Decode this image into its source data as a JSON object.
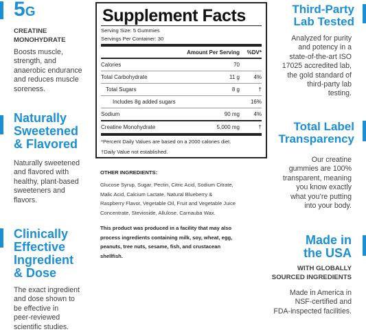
{
  "left": {
    "s1": {
      "big": "5",
      "big_suffix": "G",
      "caps": [
        "CREATINE",
        "MONOHYDRATE"
      ],
      "text": [
        "Boosts muscle,",
        "strength, and",
        "anaerobic endurance",
        "and reduces muscle",
        "soreness."
      ]
    },
    "s2": {
      "heading": [
        "Naturally",
        "Sweetened",
        "& Flavored"
      ],
      "text": [
        "Naturally sweetened",
        "and flavored with",
        "healthy, plant-based",
        "sweeteners and",
        "flavors."
      ]
    },
    "s3": {
      "heading": [
        "Clinically",
        "Effective",
        "Ingredient",
        "& Dose"
      ],
      "text": [
        "The exact ingredient",
        "and dose shown to",
        "be effective in",
        "peer-reviewed",
        "scientific studies."
      ]
    }
  },
  "facts": {
    "title": "Supplement Facts",
    "serving_size": "Serving Size: 5 Gummies",
    "servings_per_container": "Servings Per Container: 30",
    "header": {
      "amount": "Amount Per Serving",
      "dv": "%DV*"
    },
    "rows": [
      {
        "name": "Calories",
        "amount": "70",
        "dv": ""
      },
      {
        "name": "Total Carbohydrate",
        "amount": "11 g",
        "dv": "4%"
      },
      {
        "name": "Total Sugars",
        "amount": "8 g",
        "dv": "†"
      },
      {
        "name": "Includes 8g added sugars",
        "amount": "",
        "dv": "16%"
      },
      {
        "name": "Sodium",
        "amount": "90 mg",
        "dv": "4%"
      },
      {
        "name": "Creatine Monohydrate",
        "amount": "5,000 mg",
        "dv": "†"
      }
    ],
    "footnotes": [
      "*Percent Daily Values are based on a 2000 calories diet.",
      "†Daily Value not established."
    ]
  },
  "other": {
    "heading": "OTHER INGREDIENTS:",
    "lines": [
      "Glucose Syrup, Sugar, Pectin, Citric Acid, Sodium Citrate,",
      "Malic Acid, Calcium Lactate, Natural Blueberry &",
      "Raspberry Flavor, Vegetable Oil, Fruit and Vegetable Juice",
      "Concentrate, Stevioside, Allulose, Carnauba Wax."
    ],
    "allergen": [
      "This product was produced in a facility that may also",
      "process ingredients containing milk, soy, wheat, egg,",
      "peanuts, tree nuts, sesame, fish, and crustacean",
      "shellfish."
    ]
  },
  "right": {
    "s1": {
      "heading": [
        "Third-Party",
        "Lab Tested"
      ],
      "text": [
        "Analyzed for purity",
        "and potency in a",
        "state-of-the-art ISO",
        "17025 accredited lab,",
        "the gold standard of",
        "third-party lab",
        "testing."
      ]
    },
    "s2": {
      "heading": [
        "Total Label",
        "Transparency"
      ],
      "text": [
        "Our creatine",
        "gummies are 100%",
        "transparent, meaning",
        "you know exactly",
        "what you’re putting",
        "into your body."
      ]
    },
    "s3": {
      "heading": [
        "Made in",
        "the USA"
      ],
      "caps": [
        "WITH GLOBALLY",
        "SOURCED INGREDIENTS"
      ],
      "text": [
        "Made in America in",
        "NSF-certified and",
        "FDA-inspected facilities."
      ]
    }
  },
  "colors": {
    "accent": "#1b8fd6",
    "text": "#3a3a3a"
  }
}
